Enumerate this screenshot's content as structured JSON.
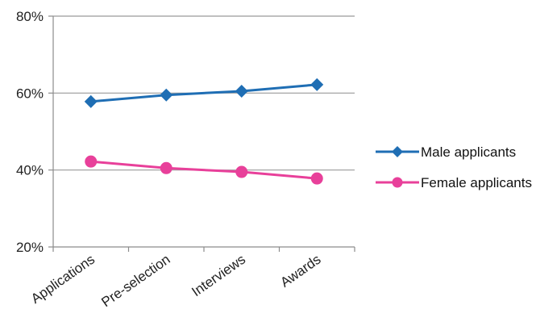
{
  "chart_data": {
    "type": "line",
    "title": "",
    "xlabel": "",
    "ylabel": "",
    "categories": [
      "Applications",
      "Pre-selection",
      "Interviews",
      "Awards"
    ],
    "y_ticks": [
      "20%",
      "40%",
      "60%",
      "80%"
    ],
    "ylim": [
      20,
      80
    ],
    "y_unit": "%",
    "grid": "horizontal",
    "legend_position": "right",
    "series": [
      {
        "name": "Male applicants",
        "values": [
          57.8,
          59.5,
          60.5,
          62.2
        ],
        "color": "#1f6eb4",
        "marker": "diamond"
      },
      {
        "name": "Female applicants",
        "values": [
          42.2,
          40.5,
          39.5,
          37.8
        ],
        "color": "#e8409a",
        "marker": "circle"
      }
    ]
  }
}
